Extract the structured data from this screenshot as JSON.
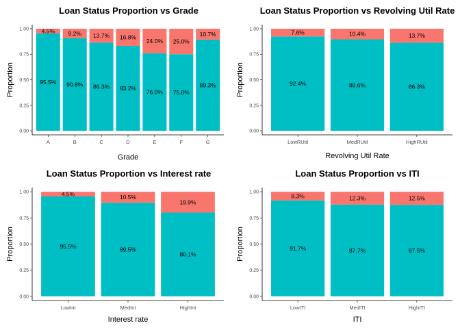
{
  "colors": {
    "primary_fill": "#00BFC4",
    "secondary_fill": "#F8766D",
    "axis": "#000000",
    "tick_text": "#4d4d4d",
    "background": "#ffffff"
  },
  "chart_data": [
    {
      "type": "bar",
      "stacked": true,
      "title": "Loan Status Proportion vs Grade",
      "xlabel": "Grade",
      "ylabel": "Proportion",
      "ylim": [
        0,
        1
      ],
      "y_ticks": [
        "0.00",
        "0.25",
        "0.50",
        "0.75",
        "1.00"
      ],
      "y_tick_values": [
        0,
        0.25,
        0.5,
        0.75,
        1
      ],
      "grid": false,
      "categories": [
        "A",
        "B",
        "C",
        "D",
        "E",
        "F",
        "G"
      ],
      "series": [
        {
          "values": [
            0.955,
            0.908,
            0.863,
            0.832,
            0.76,
            0.75,
            0.893
          ],
          "labels": [
            "95.5%",
            "90.8%",
            "86.3%",
            "83.2%",
            "76.0%",
            "75.0%",
            "89.3%"
          ]
        },
        {
          "values": [
            0.045,
            0.092,
            0.137,
            0.168,
            0.24,
            0.25,
            0.107
          ],
          "labels": [
            "4.5%",
            "9.2%",
            "13.7%",
            "16.8%",
            "24.0%",
            "25.0%",
            "10.7%"
          ]
        }
      ]
    },
    {
      "type": "bar",
      "stacked": true,
      "title": "Loan Status Proportion vs Revolving Util Rate",
      "xlabel": "Revolving Util Rate",
      "ylabel": "Proportion",
      "ylim": [
        0,
        1
      ],
      "y_ticks": [
        "0.00",
        "0.25",
        "0.50",
        "0.75",
        "1.00"
      ],
      "y_tick_values": [
        0,
        0.25,
        0.5,
        0.75,
        1
      ],
      "grid": false,
      "categories": [
        "LowRUtil",
        "MedRUtil",
        "HighRUtil"
      ],
      "series": [
        {
          "values": [
            0.924,
            0.896,
            0.863
          ],
          "labels": [
            "92.4%",
            "89.6%",
            "86.3%"
          ]
        },
        {
          "values": [
            0.076,
            0.104,
            0.137
          ],
          "labels": [
            "7.6%",
            "10.4%",
            "13.7%"
          ]
        }
      ]
    },
    {
      "type": "bar",
      "stacked": true,
      "title": "Loan Status Proportion vs Interest rate",
      "xlabel": "Interest rate",
      "ylabel": "Proportion",
      "ylim": [
        0,
        1
      ],
      "y_ticks": [
        "0.00",
        "0.25",
        "0.50",
        "0.75",
        "1.00"
      ],
      "y_tick_values": [
        0,
        0.25,
        0.5,
        0.75,
        1
      ],
      "grid": false,
      "categories": [
        "LowInt",
        "MedInt",
        "HighInt"
      ],
      "series": [
        {
          "values": [
            0.955,
            0.895,
            0.801
          ],
          "labels": [
            "95.5%",
            "89.5%",
            "80.1%"
          ]
        },
        {
          "values": [
            0.045,
            0.105,
            0.199
          ],
          "labels": [
            "4.5%",
            "10.5%",
            "19.9%"
          ]
        }
      ]
    },
    {
      "type": "bar",
      "stacked": true,
      "title": "Loan Status Proportion vs ITI",
      "xlabel": "ITI",
      "ylabel": "Proportion",
      "ylim": [
        0,
        1
      ],
      "y_ticks": [
        "0.00",
        "0.25",
        "0.50",
        "0.75",
        "1.00"
      ],
      "y_tick_values": [
        0,
        0.25,
        0.5,
        0.75,
        1
      ],
      "grid": false,
      "categories": [
        "LowITI",
        "MedITI",
        "HighITI"
      ],
      "series": [
        {
          "values": [
            0.917,
            0.877,
            0.875
          ],
          "labels": [
            "91.7%",
            "87.7%",
            "87.5%"
          ]
        },
        {
          "values": [
            0.083,
            0.123,
            0.125
          ],
          "labels": [
            "8.3%",
            "12.3%",
            "12.5%"
          ]
        }
      ]
    }
  ]
}
